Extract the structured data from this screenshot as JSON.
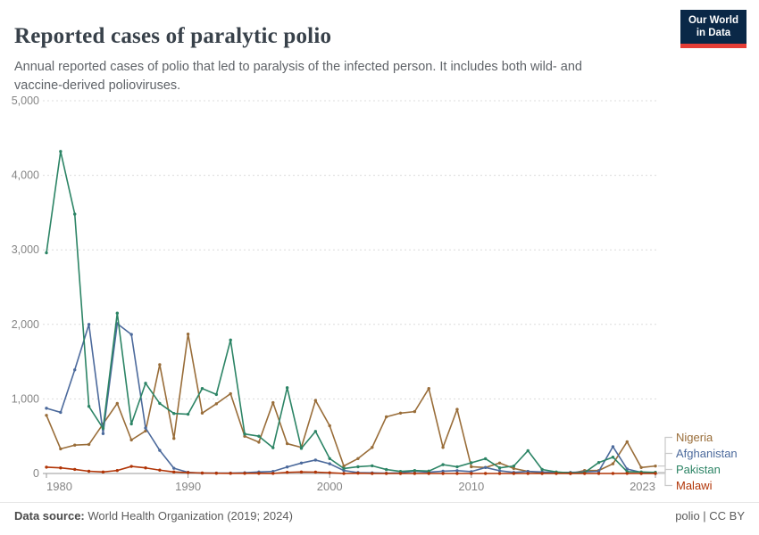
{
  "header": {
    "title": "Reported cases of paralytic polio",
    "subtitle": "Annual reported cases of polio that led to paralysis of the infected person. It includes both wild- and vaccine-derived polioviruses.",
    "logo": {
      "line1": "Our World",
      "line2": "in Data"
    }
  },
  "footer": {
    "source_label": "Data source:",
    "source_value": " World Health Organization (2019; 2024)",
    "right": "polio | CC BY"
  },
  "chart_data": {
    "type": "line",
    "title": "Reported cases of paralytic polio",
    "xlabel": "",
    "ylabel": "",
    "ylim": [
      0,
      5000
    ],
    "y_ticks": [
      0,
      1000,
      2000,
      3000,
      4000,
      5000
    ],
    "x_range": [
      1980,
      2023
    ],
    "x_tick_labels": [
      "1980",
      "1990",
      "2000",
      "2010",
      "2023"
    ],
    "x_tick_years": [
      1980,
      1990,
      2000,
      2010,
      2023
    ],
    "grid": "dashed horizontal",
    "legend_position": "right",
    "x": [
      1980,
      1981,
      1982,
      1983,
      1984,
      1985,
      1986,
      1987,
      1988,
      1989,
      1990,
      1991,
      1992,
      1993,
      1994,
      1995,
      1996,
      1997,
      1998,
      1999,
      2000,
      2001,
      2002,
      2003,
      2004,
      2005,
      2006,
      2007,
      2008,
      2009,
      2010,
      2011,
      2012,
      2013,
      2014,
      2015,
      2016,
      2017,
      2018,
      2019,
      2020,
      2021,
      2022,
      2023
    ],
    "series": [
      {
        "name": "Nigeria",
        "color": "#996d39",
        "values": [
          780,
          330,
          380,
          390,
          665,
          940,
          450,
          570,
          1460,
          470,
          1870,
          810,
          935,
          1070,
          500,
          420,
          950,
          400,
          350,
          980,
          640,
          100,
          200,
          350,
          760,
          810,
          830,
          1140,
          350,
          860,
          90,
          80,
          140,
          67,
          28,
          8,
          8,
          0,
          40,
          40,
          130,
          425,
          80,
          100
        ]
      },
      {
        "name": "Afghanistan",
        "color": "#4c6a9c",
        "values": [
          875,
          820,
          1390,
          2000,
          535,
          2010,
          1865,
          610,
          310,
          70,
          15,
          5,
          5,
          5,
          10,
          20,
          28,
          87,
          140,
          180,
          130,
          40,
          12,
          8,
          4,
          9,
          31,
          17,
          31,
          38,
          25,
          80,
          37,
          14,
          28,
          20,
          13,
          14,
          21,
          29,
          360,
          60,
          15,
          8
        ]
      },
      {
        "name": "Pakistan",
        "color": "#2c8465",
        "values": [
          2960,
          4320,
          3480,
          900,
          605,
          2150,
          665,
          1210,
          940,
          805,
          795,
          1140,
          1060,
          1790,
          530,
          500,
          345,
          1150,
          337,
          565,
          200,
          67,
          90,
          103,
          53,
          28,
          40,
          32,
          118,
          89,
          144,
          198,
          75,
          100,
          306,
          54,
          20,
          8,
          12,
          147,
          219,
          25,
          20,
          15
        ]
      },
      {
        "name": "Malawi",
        "color": "#b13507",
        "values": [
          85,
          75,
          55,
          30,
          20,
          40,
          95,
          75,
          45,
          20,
          12,
          6,
          3,
          2,
          2,
          2,
          1,
          15,
          20,
          18,
          10,
          0,
          4,
          0,
          0,
          0,
          0,
          0,
          0,
          0,
          0,
          0,
          0,
          0,
          0,
          0,
          0,
          0,
          0,
          0,
          0,
          1,
          0,
          0
        ]
      }
    ]
  }
}
